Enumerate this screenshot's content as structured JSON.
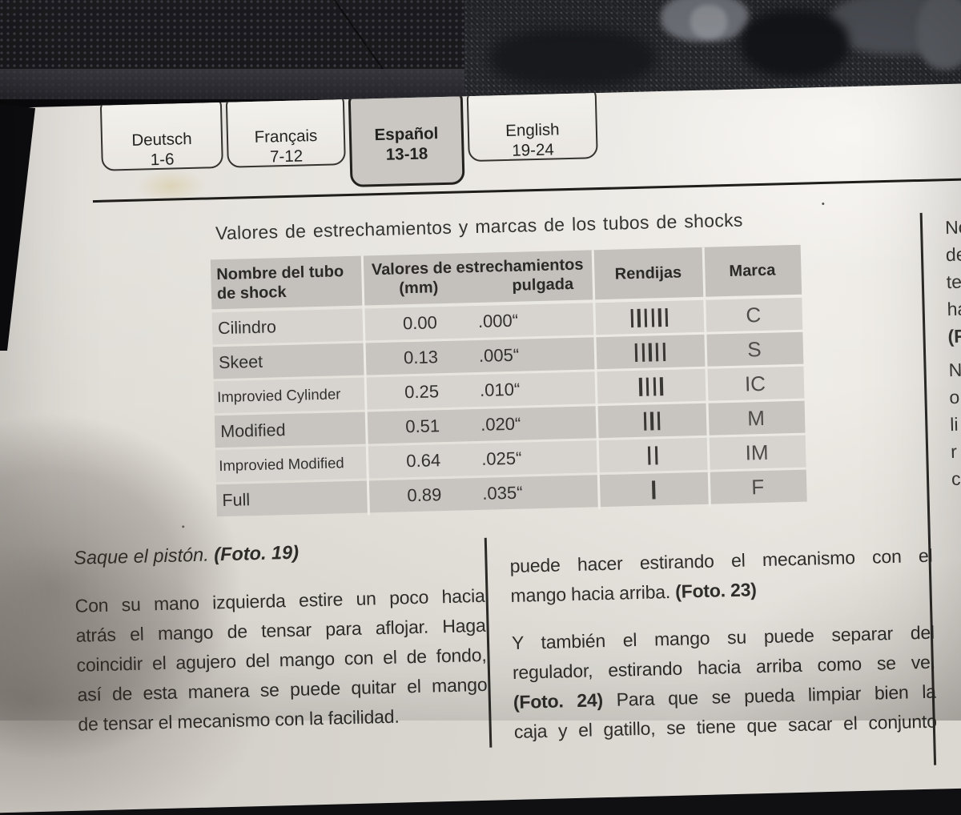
{
  "colors": {
    "background": "#17171a",
    "paper": "#e8e5df",
    "ink": "#2f2e2b",
    "table_header_bg": "#c4c1bd",
    "row_light": "#d7d4d0",
    "row_dark": "#c8c5c1",
    "active_tab_bg": "#cac7c3"
  },
  "tabs": [
    {
      "label": "Deutsch",
      "pages": "1-6"
    },
    {
      "label": "Français",
      "pages": "7-12"
    },
    {
      "label": "Español",
      "pages": "13-18"
    },
    {
      "label": "English",
      "pages": "19-24"
    }
  ],
  "table": {
    "title": "Valores de estrechamientos y marcas de los tubos de shocks",
    "header": {
      "col1_line1": "Nombre del tubo",
      "col1_line2": "de shock",
      "col2": "Valores de estrechamientos",
      "col2_sub1": "(mm)",
      "col2_sub2": "pulgada",
      "col3": "Rendijas",
      "col4": "Marca"
    },
    "rows": [
      {
        "name": "Cilindro",
        "mm": "0.00",
        "inch": ".000“",
        "rendijas": "IIIIII",
        "marca": "C",
        "small": false
      },
      {
        "name": "Skeet",
        "mm": "0.13",
        "inch": ".005“",
        "rendijas": "IIIII",
        "marca": "S",
        "small": false
      },
      {
        "name": "Improvied Cylinder",
        "mm": "0.25",
        "inch": ".010“",
        "rendijas": "IIII",
        "marca": "IC",
        "small": true
      },
      {
        "name": "Modified",
        "mm": "0.51",
        "inch": ".020“",
        "rendijas": "III",
        "marca": "M",
        "small": false
      },
      {
        "name": "Improvied Modified",
        "mm": "0.64",
        "inch": ".025“",
        "rendijas": "II",
        "marca": "IM",
        "small": true
      },
      {
        "name": "Full",
        "mm": "0.89",
        "inch": ".035“",
        "rendijas": "I",
        "marca": "F",
        "small": false
      }
    ]
  },
  "left_column": {
    "caption": [
      [
        "Saque el pistón. ",
        0
      ],
      [
        "(Foto. 19)",
        1
      ]
    ],
    "paragraph": [
      [
        [
          "Con su mano izquierda estire un poco hacia",
          0
        ]
      ],
      [
        [
          "atrás el mango de tensar para aflojar. Haga",
          0
        ]
      ],
      [
        [
          "coincidir el agujero del mango con el de fondo,",
          0
        ]
      ],
      [
        [
          "así de esta manera se puede quitar el mango",
          0
        ]
      ],
      [
        [
          "de tensar el mecanismo con la facilidad.",
          0
        ]
      ]
    ]
  },
  "right_column": {
    "paragraph1": [
      [
        [
          "puede hacer estirando el mecanismo con el",
          0
        ]
      ],
      [
        [
          "mango hacia arriba. ",
          0
        ],
        [
          "(Foto. 23)",
          1
        ]
      ]
    ],
    "paragraph2": [
      [
        [
          "Y también el mango su puede separar del",
          0
        ]
      ],
      [
        [
          "regulador, estirando hacia arriba como se ve.",
          0
        ]
      ],
      [
        [
          "(Foto. 24)",
          1
        ],
        [
          " Para que se pueda limpiar bien la",
          0
        ]
      ],
      [
        [
          "caja y el gatillo, se tiene que sacar el conjunto",
          0
        ]
      ]
    ]
  },
  "margin_column": {
    "fragments_top": [
      [
        "No",
        0
      ],
      [
        "de",
        0
      ],
      [
        "te",
        0
      ],
      [
        "ha",
        0
      ],
      [
        "(F",
        1
      ]
    ],
    "fragments_bottom": [
      [
        "N",
        0
      ],
      [
        "o",
        0
      ],
      [
        "li",
        0
      ],
      [
        "r",
        0
      ],
      [
        "c",
        0
      ]
    ]
  }
}
